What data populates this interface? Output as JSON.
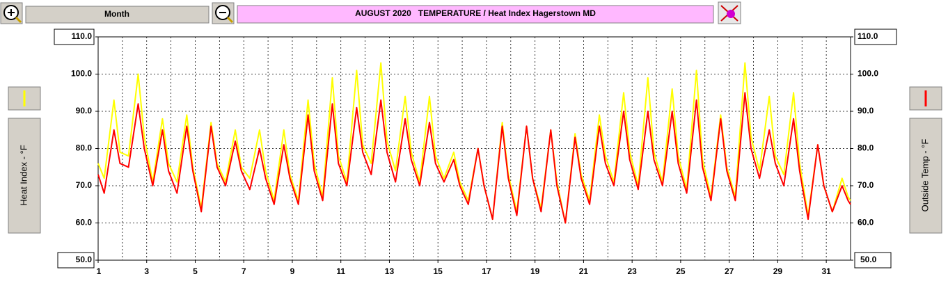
{
  "header": {
    "period": "Month"
  },
  "chart_data": {
    "type": "line",
    "title": "AUGUST 2020   TEMPERATURE / Heat Index Hagerstown MD",
    "x": [
      1,
      1.25,
      1.65,
      1.9,
      2.25,
      2.65,
      2.9,
      3.25,
      3.65,
      3.9,
      4.25,
      4.65,
      4.9,
      5.25,
      5.65,
      5.9,
      6.25,
      6.65,
      6.9,
      7.25,
      7.65,
      7.9,
      8.25,
      8.65,
      8.9,
      9.25,
      9.65,
      9.9,
      10.25,
      10.65,
      10.9,
      11.25,
      11.65,
      11.9,
      12.25,
      12.65,
      12.9,
      13.25,
      13.65,
      13.9,
      14.25,
      14.65,
      14.9,
      15.25,
      15.65,
      15.9,
      16.25,
      16.65,
      16.9,
      17.25,
      17.65,
      17.9,
      18.25,
      18.65,
      18.9,
      19.25,
      19.65,
      19.9,
      20.25,
      20.65,
      20.9,
      21.25,
      21.65,
      21.9,
      22.25,
      22.65,
      22.9,
      23.25,
      23.65,
      23.9,
      24.25,
      24.65,
      24.9,
      25.25,
      25.65,
      25.9,
      26.25,
      26.65,
      26.9,
      27.25,
      27.65,
      27.9,
      28.25,
      28.65,
      28.9,
      29.25,
      29.65,
      29.9,
      30.25,
      30.65,
      30.9,
      31.25,
      31.65,
      31.9,
      32
    ],
    "series": [
      {
        "name": "Heat Index - °F",
        "color": "#ffff00",
        "axis": "y",
        "values": [
          76,
          72,
          93,
          79,
          78,
          100,
          83,
          71,
          88,
          76,
          71,
          89,
          75,
          64,
          87,
          76,
          71,
          85,
          75,
          72,
          85,
          74,
          66,
          85,
          73,
          66,
          93,
          76,
          67,
          99,
          78,
          71,
          101,
          81,
          76,
          103,
          82,
          74,
          94,
          79,
          71,
          94,
          78,
          72,
          79,
          71,
          66,
          80,
          70,
          61,
          87,
          73,
          63,
          86,
          72,
          64,
          85,
          71,
          60,
          84,
          73,
          66,
          89,
          78,
          71,
          95,
          79,
          70,
          99,
          79,
          71,
          96,
          78,
          69,
          101,
          77,
          67,
          89,
          75,
          67,
          103,
          83,
          74,
          94,
          78,
          73,
          95,
          76,
          62,
          81,
          70,
          63,
          72,
          67,
          66
        ]
      },
      {
        "name": "Outside Temp - °F",
        "color": "#ff0000",
        "axis": "y2",
        "values": [
          73,
          68,
          85,
          76,
          75,
          92,
          80,
          70,
          85,
          74,
          68,
          86,
          74,
          63,
          86,
          75,
          70,
          82,
          74,
          69,
          80,
          72,
          65,
          81,
          72,
          65,
          89,
          74,
          66,
          92,
          76,
          70,
          91,
          79,
          73,
          93,
          79,
          71,
          88,
          77,
          70,
          87,
          76,
          71,
          77,
          70,
          65,
          80,
          70,
          61,
          86,
          72,
          62,
          86,
          72,
          63,
          85,
          70,
          60,
          83,
          72,
          65,
          86,
          76,
          70,
          90,
          77,
          69,
          90,
          77,
          70,
          90,
          76,
          68,
          93,
          75,
          66,
          88,
          74,
          66,
          95,
          80,
          72,
          85,
          76,
          70,
          88,
          74,
          61,
          81,
          70,
          63,
          70,
          66,
          65
        ]
      }
    ],
    "xlim": [
      1,
      32
    ],
    "xticks": [
      1,
      3,
      5,
      7,
      9,
      11,
      13,
      15,
      17,
      19,
      21,
      23,
      25,
      27,
      29,
      31
    ],
    "ylim": [
      50,
      110
    ],
    "yticks": [
      {
        "value": 50,
        "label": "50.0"
      },
      {
        "value": 60,
        "label": "60.0"
      },
      {
        "value": 70,
        "label": "70.0"
      },
      {
        "value": 80,
        "label": "80.0"
      },
      {
        "value": 90,
        "label": "90.0"
      },
      {
        "value": 100,
        "label": "100.0"
      },
      {
        "value": 110,
        "label": "110.0"
      }
    ],
    "y2lim": [
      50,
      110
    ],
    "y2ticks": [
      {
        "value": 50,
        "label": "50.0"
      },
      {
        "value": 60,
        "label": "60.0"
      },
      {
        "value": 70,
        "label": "70.0"
      },
      {
        "value": 80,
        "label": "80.0"
      },
      {
        "value": 90,
        "label": "90.0"
      },
      {
        "value": 100,
        "label": "100.0"
      },
      {
        "value": 110,
        "label": "110.0"
      }
    ],
    "grid": true
  }
}
